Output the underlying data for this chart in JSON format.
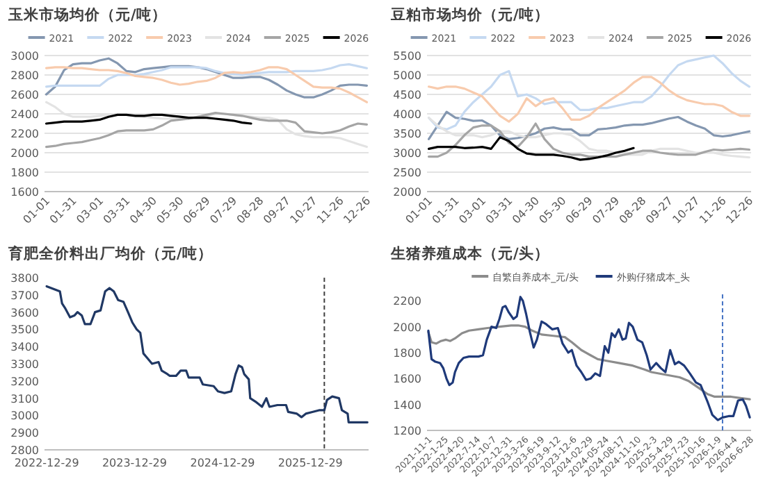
{
  "chart_data": [
    {
      "type": "line",
      "title": "玉米市场均价（元/吨）",
      "legend": "top",
      "grid": "y",
      "categories": [
        "01-01",
        null,
        null,
        "01-31",
        null,
        null,
        "03-01",
        null,
        null,
        "03-31",
        null,
        null,
        "04-30",
        null,
        null,
        "05-30",
        null,
        null,
        "06-29",
        null,
        null,
        "07-29",
        null,
        null,
        "08-28",
        null,
        null,
        "09-27",
        null,
        null,
        "10-27",
        null,
        null,
        "11-26",
        null,
        null,
        "12-26"
      ],
      "ylim": [
        1600,
        3000
      ],
      "yticks": [
        1600,
        1800,
        2000,
        2200,
        2400,
        2600,
        2800,
        3000
      ],
      "series": [
        {
          "name": "2021",
          "color": "#8497b0",
          "values": [
            2600,
            2680,
            2850,
            2910,
            2920,
            2920,
            2950,
            2970,
            2920,
            2840,
            2830,
            2860,
            2870,
            2880,
            2890,
            2890,
            2890,
            2880,
            2860,
            2830,
            2800,
            2770,
            2770,
            2780,
            2780,
            2750,
            2700,
            2640,
            2600,
            2570,
            2570,
            2600,
            2640,
            2690,
            2700,
            2700,
            2690
          ]
        },
        {
          "name": "2022",
          "color": "#c5d9f1",
          "values": [
            2680,
            2690,
            2690,
            2690,
            2690,
            2690,
            2690,
            2760,
            2800,
            2800,
            2800,
            2810,
            2830,
            2850,
            2880,
            2880,
            2880,
            2880,
            2870,
            2840,
            2820,
            2810,
            2800,
            2810,
            2820,
            2830,
            2830,
            2830,
            2840,
            2840,
            2840,
            2850,
            2870,
            2900,
            2910,
            2890,
            2870
          ]
        },
        {
          "name": "2023",
          "color": "#f8cbad",
          "values": [
            2870,
            2880,
            2880,
            2870,
            2870,
            2860,
            2850,
            2850,
            2840,
            2820,
            2790,
            2780,
            2770,
            2750,
            2720,
            2700,
            2710,
            2730,
            2740,
            2770,
            2820,
            2830,
            2820,
            2830,
            2850,
            2880,
            2880,
            2860,
            2800,
            2740,
            2680,
            2670,
            2670,
            2660,
            2620,
            2570,
            2520
          ]
        },
        {
          "name": "2024",
          "color": "#e3e3e3",
          "values": [
            2520,
            2470,
            2400,
            2370,
            2370,
            2370,
            2380,
            2390,
            2390,
            2390,
            2380,
            2370,
            2360,
            2350,
            2350,
            2350,
            2360,
            2370,
            2380,
            2400,
            2400,
            2390,
            2380,
            2370,
            2360,
            2360,
            2340,
            2240,
            2190,
            2170,
            2160,
            2160,
            2160,
            2150,
            2120,
            2090,
            2060
          ]
        },
        {
          "name": "2025",
          "color": "#a5a5a5",
          "values": [
            2060,
            2070,
            2090,
            2100,
            2110,
            2130,
            2150,
            2180,
            2220,
            2230,
            2230,
            2230,
            2240,
            2280,
            2330,
            2340,
            2350,
            2370,
            2390,
            2410,
            2400,
            2390,
            2380,
            2360,
            2340,
            2330,
            2330,
            2330,
            2310,
            2220,
            2210,
            2200,
            2210,
            2230,
            2270,
            2300,
            2290
          ]
        },
        {
          "name": "2026",
          "color": "#000000",
          "values": [
            2300,
            2310,
            2320,
            2320,
            2320,
            2330,
            2340,
            2370,
            2390,
            2390,
            2380,
            2380,
            2390,
            2390,
            2380,
            2370,
            2360,
            2360,
            2360,
            2350,
            2340,
            2330,
            2310,
            2300,
            null,
            null,
            null,
            null,
            null,
            null,
            null,
            null,
            null,
            null,
            null,
            null,
            null
          ]
        }
      ]
    },
    {
      "type": "line",
      "title": "豆粕市场均价（元/吨）",
      "legend": "top",
      "grid": "y",
      "categories": [
        "01-01",
        null,
        null,
        "01-31",
        null,
        null,
        "03-01",
        null,
        null,
        "03-31",
        null,
        null,
        "04-30",
        null,
        null,
        "05-30",
        null,
        null,
        "06-29",
        null,
        null,
        "07-29",
        null,
        null,
        "08-28",
        null,
        null,
        "09-27",
        null,
        null,
        "10-27",
        null,
        null,
        "11-26",
        null,
        null,
        "12-26"
      ],
      "ylim": [
        2000,
        5500
      ],
      "yticks": [
        2000,
        2500,
        3000,
        3500,
        4000,
        4500,
        5000,
        5500
      ],
      "series": [
        {
          "name": "2021",
          "color": "#8497b0",
          "values": [
            3350,
            3700,
            4050,
            3900,
            3870,
            3820,
            3830,
            3700,
            3450,
            3350,
            3380,
            3430,
            3500,
            3620,
            3650,
            3600,
            3600,
            3450,
            3450,
            3600,
            3620,
            3650,
            3700,
            3720,
            3720,
            3760,
            3820,
            3880,
            3920,
            3800,
            3700,
            3620,
            3450,
            3420,
            3450,
            3500,
            3550
          ]
        },
        {
          "name": "2022",
          "color": "#c5d9f1",
          "values": [
            3900,
            3650,
            3600,
            3700,
            4050,
            4300,
            4500,
            4700,
            5000,
            5100,
            4450,
            4500,
            4400,
            4250,
            4300,
            4300,
            4300,
            4100,
            4100,
            4150,
            4150,
            4200,
            4250,
            4300,
            4300,
            4450,
            4700,
            5000,
            5250,
            5350,
            5400,
            5450,
            5500,
            5300,
            5050,
            4850,
            4700
          ]
        },
        {
          "name": "2023",
          "color": "#f8cbad",
          "values": [
            4700,
            4650,
            4700,
            4700,
            4650,
            4550,
            4450,
            4200,
            3950,
            3800,
            4000,
            4400,
            4200,
            4350,
            4400,
            4150,
            3850,
            3850,
            3950,
            4150,
            4300,
            4450,
            4600,
            4800,
            4950,
            4950,
            4800,
            4600,
            4450,
            4350,
            4300,
            4250,
            4250,
            4200,
            4050,
            3950,
            3950
          ]
        },
        {
          "name": "2024",
          "color": "#e3e3e3",
          "values": [
            3900,
            3700,
            3550,
            3450,
            3450,
            3450,
            3400,
            3450,
            3550,
            3550,
            3450,
            3400,
            3400,
            3450,
            3500,
            3500,
            3450,
            3300,
            3100,
            3050,
            3050,
            3000,
            2950,
            2950,
            2950,
            3050,
            3100,
            3100,
            3100,
            3050,
            3000,
            3000,
            3000,
            2950,
            2920,
            2900,
            2880
          ]
        },
        {
          "name": "2025",
          "color": "#a5a5a5",
          "values": [
            2900,
            2900,
            3000,
            3200,
            3450,
            3650,
            3700,
            3700,
            3550,
            3250,
            3150,
            3400,
            3750,
            3350,
            3100,
            3000,
            2950,
            2950,
            2900,
            2900,
            2900,
            2900,
            2950,
            3000,
            3050,
            3050,
            3000,
            2970,
            2950,
            2950,
            2950,
            3020,
            3080,
            3060,
            3080,
            3100,
            3080
          ]
        },
        {
          "name": "2026",
          "color": "#000000",
          "values": [
            3100,
            3150,
            3150,
            3150,
            3120,
            3130,
            3150,
            3100,
            3400,
            3300,
            3100,
            2980,
            2950,
            2950,
            2950,
            2920,
            2880,
            2820,
            2840,
            2880,
            2930,
            3000,
            3050,
            3120,
            null,
            null,
            null,
            null,
            null,
            null,
            null,
            null,
            null,
            null,
            null,
            null,
            null
          ]
        }
      ]
    },
    {
      "type": "line",
      "title": "育肥全价料出厂均价（元/吨）",
      "color": "#203864",
      "xlim": [
        "2022-12-20",
        "2026-08-28"
      ],
      "xticks": [
        "2022-12-29",
        "2023-12-29",
        "2024-12-29",
        "2025-12-29"
      ],
      "ylim": [
        2800,
        3800
      ],
      "yticks": [
        2800,
        2900,
        3000,
        3100,
        3200,
        3300,
        3400,
        3500,
        3600,
        3700,
        3800
      ],
      "ref_lines": [
        {
          "axis": "x",
          "value": "2026-02-25",
          "color": "#404040",
          "line_style": "dashed"
        }
      ],
      "x": [
        "2022-12-29",
        "2023-02-03",
        "2023-02-22",
        "2023-03-03",
        "2023-03-17",
        "2023-04-05",
        "2023-04-23",
        "2023-05-06",
        "2023-05-24",
        "2023-06-06",
        "2023-06-29",
        "2023-07-18",
        "2023-08-10",
        "2023-08-29",
        "2023-09-16",
        "2023-10-04",
        "2023-10-22",
        "2023-11-13",
        "2023-12-02",
        "2023-12-20",
        "2024-01-07",
        "2024-01-22",
        "2024-02-04",
        "2024-02-22",
        "2024-03-11",
        "2024-04-07",
        "2024-04-20",
        "2024-05-14",
        "2024-05-23",
        "2024-06-19",
        "2024-07-08",
        "2024-07-31",
        "2024-08-10",
        "2024-09-01",
        "2024-09-25",
        "2024-10-08",
        "2024-11-22",
        "2024-12-10",
        "2025-01-06",
        "2025-02-03",
        "2025-02-21",
        "2025-03-06",
        "2025-03-20",
        "2025-03-29",
        "2025-04-17",
        "2025-04-23",
        "2025-05-15",
        "2025-06-11",
        "2025-06-29",
        "2025-07-12",
        "2025-08-14",
        "2025-09-19",
        "2025-09-28",
        "2025-11-03",
        "2025-11-22",
        "2025-12-10",
        "2026-01-06",
        "2026-02-03",
        "2026-02-25",
        "2026-03-08",
        "2026-03-30",
        "2026-04-27",
        "2026-05-09",
        "2026-06-02",
        "2026-06-06",
        "2026-08-23"
      ],
      "values": [
        3750,
        3730,
        3720,
        3650,
        3620,
        3570,
        3580,
        3600,
        3580,
        3530,
        3530,
        3600,
        3610,
        3720,
        3740,
        3720,
        3670,
        3660,
        3600,
        3540,
        3500,
        3480,
        3360,
        3330,
        3300,
        3310,
        3260,
        3240,
        3230,
        3230,
        3260,
        3260,
        3220,
        3220,
        3220,
        3180,
        3170,
        3140,
        3130,
        3140,
        3240,
        3290,
        3280,
        3240,
        3210,
        3100,
        3080,
        3050,
        3100,
        3050,
        3060,
        3060,
        3020,
        3010,
        2990,
        3010,
        3020,
        3030,
        3030,
        3090,
        3110,
        3100,
        3030,
        3010,
        2960,
        2960
      ]
    },
    {
      "type": "line",
      "title": "生猪养殖成本（元/头）",
      "legend": "top",
      "xlim": [
        "2021-10-25",
        "2026-07-05"
      ],
      "xticks": [
        {
          "value": "2021-11-01",
          "label": "2021-11-1"
        },
        {
          "value": "2022-01-25",
          "label": "2022-1-25"
        },
        {
          "value": "2022-04-20",
          "label": "2022-4-20"
        },
        {
          "value": "2022-07-14",
          "label": "2022-7-14"
        },
        {
          "value": "2022-10-07",
          "label": "2022-10-7"
        },
        "2022-12-31",
        {
          "value": "2023-03-26",
          "label": "2023-3-26"
        },
        {
          "value": "2023-06-19",
          "label": "2023-6-19"
        },
        {
          "value": "2023-09-12",
          "label": "2023-9-12"
        },
        {
          "value": "2023-12-06",
          "label": "2023-12-6"
        },
        "2024-02-29",
        "2024-05-24",
        "2024-08-17",
        "2024-11-10",
        {
          "value": "2025-02-03",
          "label": "2025-2-3"
        },
        {
          "value": "2025-04-29",
          "label": "2025-4-29"
        },
        {
          "value": "2025-07-23",
          "label": "2025-7-23"
        },
        "2025-10-16",
        {
          "value": "2026-01-09",
          "label": "2026-1-9"
        },
        {
          "value": "2026-04-04",
          "label": "2026-4-4"
        },
        {
          "value": "2026-06-28",
          "label": "2026-6-28"
        }
      ],
      "ylim": [
        1200,
        2250
      ],
      "yticks": [
        1200,
        1400,
        1600,
        1800,
        2000,
        2200
      ],
      "ref_lines": [
        {
          "axis": "x",
          "value": "2026-02-04",
          "color": "#4472c4",
          "line_style": "dashed"
        }
      ],
      "series": [
        {
          "name": "自繁自养成本_元/头",
          "color": "#8c8c8c",
          "x": [
            "2021-11-01",
            "2021-11-18",
            "2021-12-13",
            "2022-01-07",
            "2022-02-01",
            "2022-02-25",
            "2022-03-22",
            "2022-04-28",
            "2022-06-04",
            "2022-07-24",
            "2022-09-11",
            "2022-11-12",
            "2023-01-13",
            "2023-02-19",
            "2023-03-28",
            "2023-05-04",
            "2023-06-23",
            "2023-08-24",
            "2023-10-24",
            "2023-11-30",
            "2024-01-19",
            "2024-03-08",
            "2024-04-15",
            "2024-05-22",
            "2024-08-04",
            "2024-10-17",
            "2024-12-18",
            "2025-01-24",
            "2025-04-08",
            "2025-06-22",
            "2025-08-10",
            "2025-09-29",
            "2025-11-17",
            "2025-12-24",
            "2026-01-30",
            "2026-03-21",
            "2026-05-09",
            "2026-06-28"
          ],
          "values": [
            1960,
            1880,
            1870,
            1890,
            1900,
            1890,
            1910,
            1950,
            1970,
            1980,
            1990,
            2000,
            2010,
            2010,
            2000,
            1970,
            1940,
            1930,
            1920,
            1880,
            1820,
            1780,
            1750,
            1740,
            1720,
            1700,
            1670,
            1650,
            1630,
            1610,
            1580,
            1530,
            1480,
            1460,
            1460,
            1460,
            1450,
            1440
          ]
        },
        {
          "name": "外购仔猪成本_头",
          "color": "#1f3a7a",
          "x": [
            "2021-11-01",
            "2021-11-18",
            "2021-12-08",
            "2022-01-02",
            "2022-01-19",
            "2022-02-05",
            "2022-02-20",
            "2022-03-10",
            "2022-03-22",
            "2022-04-11",
            "2022-05-06",
            "2022-06-04",
            "2022-07-24",
            "2022-08-17",
            "2022-09-06",
            "2022-10-01",
            "2022-10-26",
            "2022-11-12",
            "2022-11-29",
            "2022-12-14",
            "2023-01-01",
            "2023-01-25",
            "2023-02-12",
            "2023-03-03",
            "2023-03-16",
            "2023-04-02",
            "2023-04-22",
            "2023-05-12",
            "2023-05-29",
            "2023-06-23",
            "2023-07-17",
            "2023-08-19",
            "2023-09-17",
            "2023-10-12",
            "2023-11-11",
            "2023-11-30",
            "2023-12-25",
            "2024-01-19",
            "2024-02-13",
            "2024-03-08",
            "2024-04-02",
            "2024-04-27",
            "2024-05-22",
            "2024-06-10",
            "2024-06-28",
            "2024-07-15",
            "2024-08-04",
            "2024-08-24",
            "2024-09-10",
            "2024-09-27",
            "2024-10-17",
            "2024-11-11",
            "2024-12-06",
            "2024-12-30",
            "2025-01-19",
            "2025-02-18",
            "2025-03-15",
            "2025-04-08",
            "2025-05-03",
            "2025-05-28",
            "2025-06-17",
            "2025-07-16",
            "2025-08-15",
            "2025-09-16",
            "2025-10-11",
            "2025-11-17",
            "2025-12-12",
            "2026-01-10",
            "2026-02-04",
            "2026-03-08",
            "2026-04-02",
            "2026-04-27",
            "2026-05-22",
            "2026-06-08",
            "2026-06-28"
          ],
          "values": [
            1970,
            1750,
            1730,
            1720,
            1680,
            1600,
            1550,
            1570,
            1650,
            1720,
            1760,
            1770,
            1770,
            1780,
            1900,
            2000,
            1990,
            2060,
            2150,
            2160,
            2110,
            2060,
            2080,
            2230,
            2200,
            2100,
            1960,
            1840,
            1900,
            2040,
            2020,
            1980,
            1990,
            1870,
            1800,
            1820,
            1700,
            1650,
            1590,
            1600,
            1640,
            1620,
            1850,
            1800,
            1950,
            1920,
            1980,
            1900,
            1910,
            2030,
            2000,
            1900,
            1880,
            1780,
            1670,
            1720,
            1680,
            1650,
            1820,
            1710,
            1730,
            1700,
            1640,
            1570,
            1550,
            1420,
            1320,
            1280,
            1300,
            1310,
            1310,
            1430,
            1440,
            1390,
            1300
          ]
        }
      ]
    }
  ]
}
